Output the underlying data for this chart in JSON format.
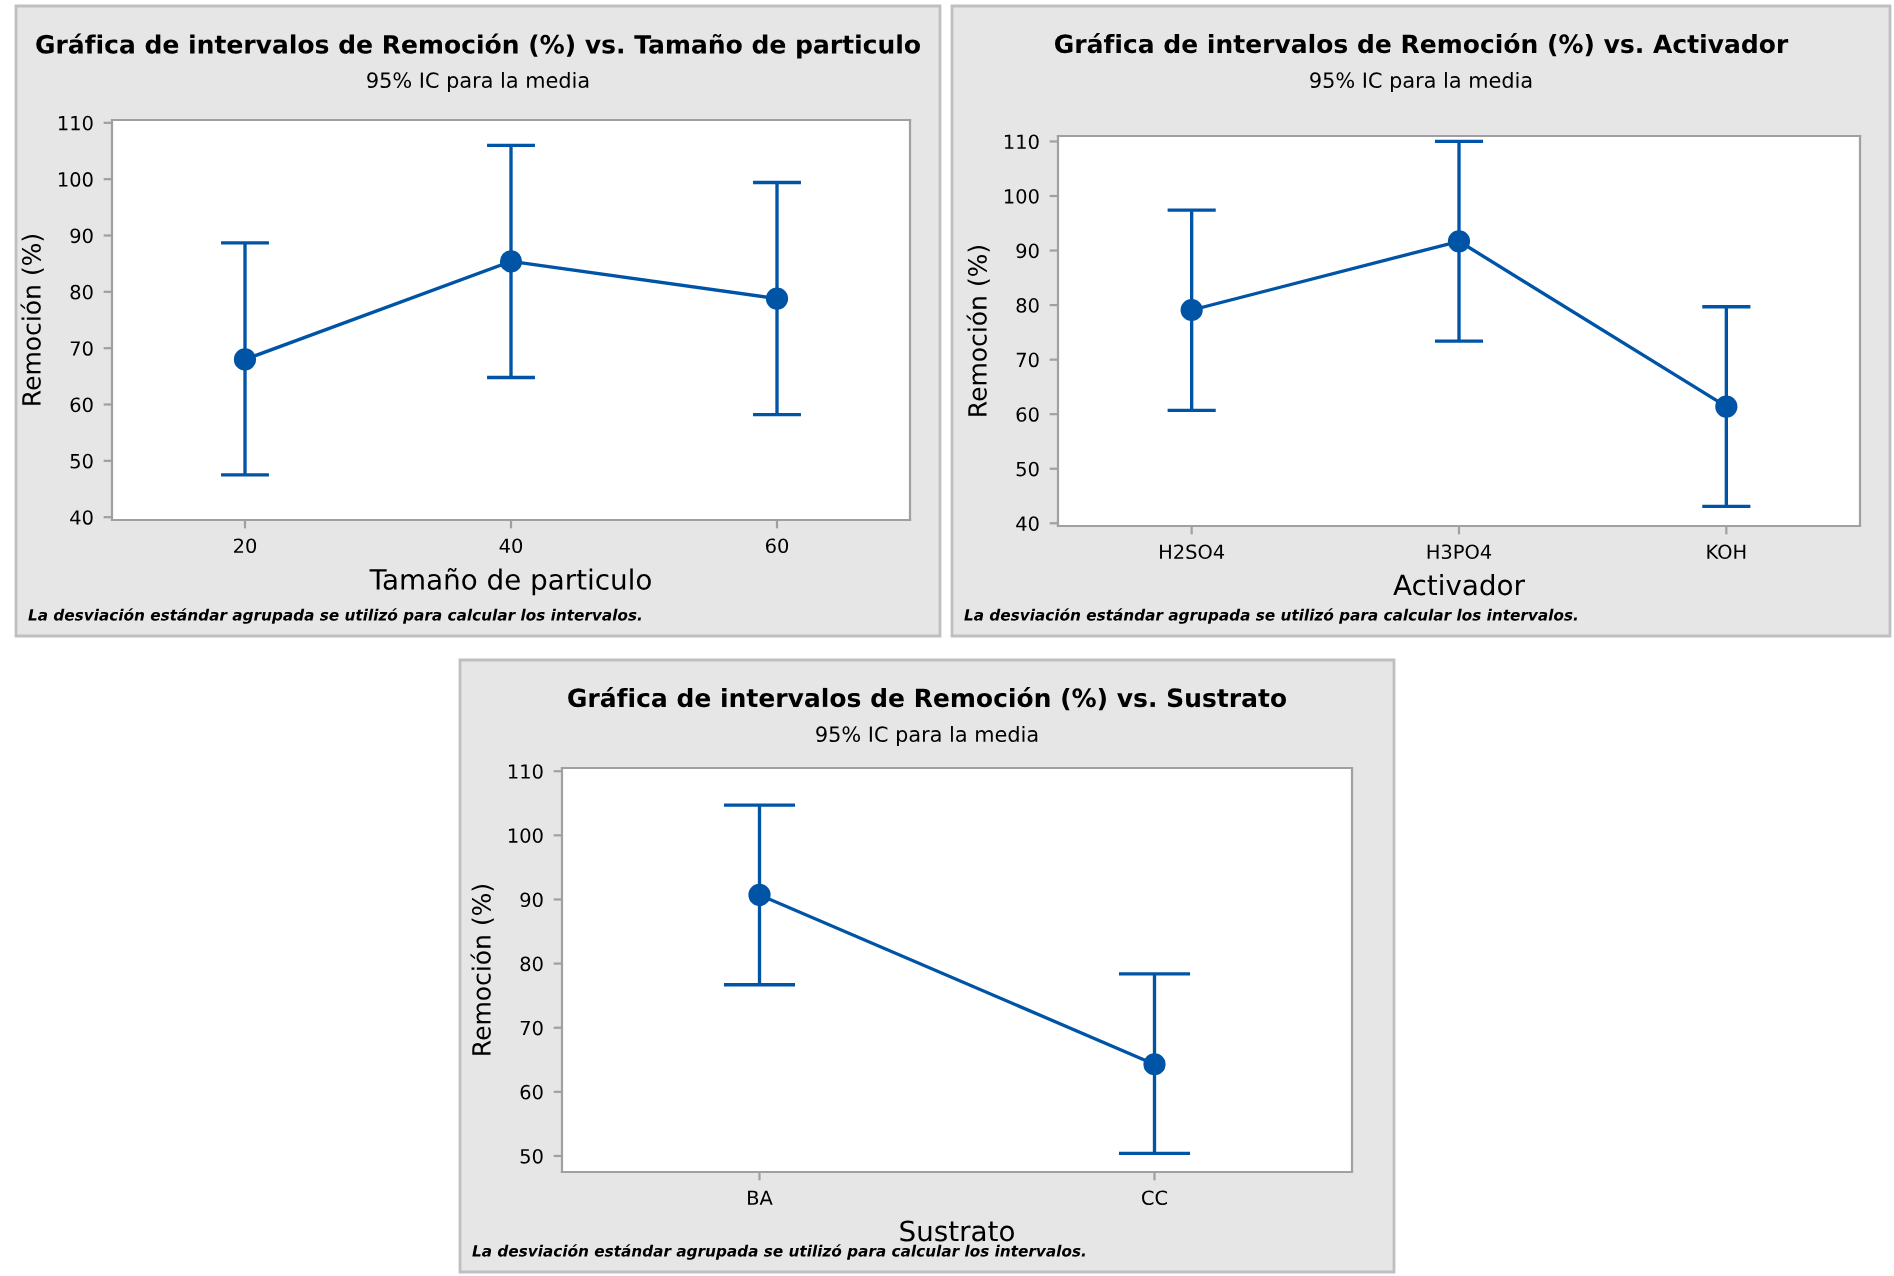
{
  "chart_data": [
    {
      "type": "line",
      "title": "Gráfica de intervalos de Remoción (%) vs. Tamaño de particulo",
      "subtitle": "95% IC para la media",
      "xlabel": "Tamaño de particulo",
      "ylabel": "Remoción (%)",
      "categories": [
        "20",
        "40",
        "60"
      ],
      "values": [
        68.0,
        85.4,
        78.8
      ],
      "errors": [
        [
          47.5,
          88.7
        ],
        [
          64.8,
          106.0
        ],
        [
          58.2,
          99.4
        ]
      ],
      "color": "#0054a6",
      "marker": "circle",
      "ylim": [
        39.5,
        110.5
      ],
      "yticks": [
        40,
        50,
        60,
        70,
        80,
        90,
        100,
        110
      ],
      "grid": false,
      "annotations": [
        "La desviación estándar agrupada se utilizó para calcular los intervalos."
      ]
    },
    {
      "type": "line",
      "title": "Gráfica de intervalos de Remoción (%) vs. Activador",
      "subtitle": "95% IC para la media",
      "xlabel": "Activador",
      "ylabel": "Remoción (%)",
      "categories": [
        "H2SO4",
        "H3PO4",
        "KOH"
      ],
      "values": [
        79.1,
        91.7,
        61.4
      ],
      "errors": [
        [
          60.7,
          97.4
        ],
        [
          73.4,
          110.0
        ],
        [
          43.1,
          79.7
        ]
      ],
      "color": "#0054a6",
      "marker": "circle",
      "ylim": [
        39.5,
        111
      ],
      "yticks": [
        40,
        50,
        60,
        70,
        80,
        90,
        100,
        110
      ],
      "grid": false,
      "annotations": [
        "La desviación estándar agrupada se utilizó para calcular los intervalos."
      ]
    },
    {
      "type": "line",
      "title": "Gráfica de intervalos de Remoción (%) vs. Sustrato",
      "subtitle": "95% IC para la media",
      "xlabel": "Sustrato",
      "ylabel": "Remoción (%)",
      "categories": [
        "BA",
        "CC"
      ],
      "values": [
        90.7,
        64.3
      ],
      "errors": [
        [
          76.7,
          104.7
        ],
        [
          50.4,
          78.4
        ]
      ],
      "color": "#0054a6",
      "marker": "circle",
      "ylim": [
        47.5,
        110.5
      ],
      "yticks": [
        50,
        60,
        70,
        80,
        90,
        100,
        110
      ],
      "grid": false,
      "annotations": [
        "La desviación estándar agrupada se utilizó para calcular los intervalos."
      ]
    }
  ]
}
